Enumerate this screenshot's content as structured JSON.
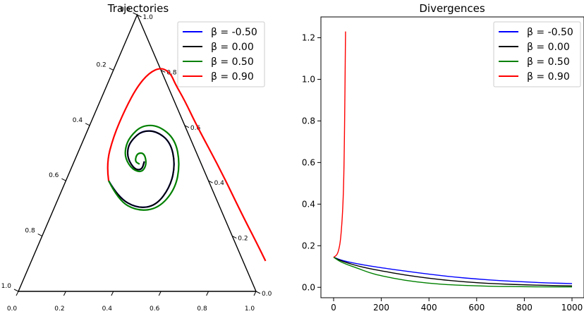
{
  "chart_data": [
    {
      "type": "line",
      "subtype": "ternary",
      "title": "Trajectories",
      "axis_ticks": [
        "0.0",
        "0.2",
        "0.4",
        "0.6",
        "0.8",
        "1.0"
      ],
      "legend": {
        "placement": "top-right"
      },
      "series": [
        {
          "name": "β = -0.50",
          "color": "#0000ff",
          "description": "inward spiral",
          "points": [
            [
              0.38,
              0.4
            ],
            [
              0.42,
              0.34
            ],
            [
              0.5,
              0.3
            ],
            [
              0.58,
              0.31
            ],
            [
              0.64,
              0.38
            ],
            [
              0.66,
              0.46
            ],
            [
              0.64,
              0.54
            ],
            [
              0.58,
              0.58
            ],
            [
              0.52,
              0.58
            ],
            [
              0.48,
              0.55
            ],
            [
              0.46,
              0.52
            ],
            [
              0.46,
              0.48
            ],
            [
              0.49,
              0.44
            ],
            [
              0.52,
              0.44
            ],
            [
              0.53,
              0.47
            ]
          ]
        },
        {
          "name": "β = 0.00",
          "color": "#000000",
          "points": [
            [
              0.38,
              0.4
            ],
            [
              0.42,
              0.34
            ],
            [
              0.5,
              0.3
            ],
            [
              0.58,
              0.31
            ],
            [
              0.64,
              0.38
            ],
            [
              0.66,
              0.46
            ],
            [
              0.64,
              0.54
            ],
            [
              0.58,
              0.58
            ],
            [
              0.52,
              0.58
            ],
            [
              0.48,
              0.55
            ],
            [
              0.46,
              0.52
            ],
            [
              0.46,
              0.48
            ],
            [
              0.49,
              0.44
            ],
            [
              0.52,
              0.44
            ],
            [
              0.53,
              0.47
            ]
          ]
        },
        {
          "name": "β = 0.50",
          "color": "#008000",
          "points": [
            [
              0.38,
              0.4
            ],
            [
              0.42,
              0.33
            ],
            [
              0.5,
              0.29
            ],
            [
              0.59,
              0.3
            ],
            [
              0.66,
              0.37
            ],
            [
              0.68,
              0.46
            ],
            [
              0.66,
              0.55
            ],
            [
              0.59,
              0.6
            ],
            [
              0.52,
              0.6
            ],
            [
              0.47,
              0.56
            ],
            [
              0.45,
              0.52
            ],
            [
              0.45,
              0.48
            ],
            [
              0.48,
              0.44
            ],
            [
              0.52,
              0.43
            ],
            [
              0.54,
              0.46
            ],
            [
              0.53,
              0.5
            ],
            [
              0.5,
              0.5
            ],
            [
              0.49,
              0.47
            ],
            [
              0.51,
              0.46
            ]
          ]
        },
        {
          "name": "β = 0.90",
          "color": "#ff0000",
          "points": [
            [
              0.38,
              0.4
            ],
            [
              0.37,
              0.46
            ],
            [
              0.4,
              0.56
            ],
            [
              0.45,
              0.66
            ],
            [
              0.5,
              0.74
            ],
            [
              0.55,
              0.79
            ],
            [
              0.6,
              0.81
            ],
            [
              0.64,
              0.79
            ],
            [
              0.66,
              0.75
            ],
            [
              0.7,
              0.69
            ],
            [
              0.75,
              0.6
            ],
            [
              0.85,
              0.44
            ],
            [
              0.94,
              0.28
            ],
            [
              1.0,
              0.18
            ],
            [
              1.04,
              0.11
            ]
          ]
        }
      ]
    },
    {
      "type": "line",
      "title": "Divergences",
      "xlim": [
        0,
        1000
      ],
      "ylim": [
        -0.05,
        1.3
      ],
      "xticks": [
        0,
        200,
        400,
        600,
        800,
        1000
      ],
      "yticks": [
        0.0,
        0.2,
        0.4,
        0.6,
        0.8,
        1.0,
        1.2
      ],
      "xtick_labels": [
        "0",
        "200",
        "400",
        "600",
        "800",
        "1000"
      ],
      "ytick_labels": [
        "0.0",
        "0.2",
        "0.4",
        "0.6",
        "0.8",
        "1.0",
        "1.2"
      ],
      "legend": {
        "placement": "top-right"
      },
      "series": [
        {
          "name": "β = -0.50",
          "color": "#0000ff",
          "x": [
            0,
            20,
            50,
            100,
            150,
            200,
            300,
            400,
            500,
            600,
            700,
            800,
            900,
            1000
          ],
          "y": [
            0.145,
            0.135,
            0.125,
            0.113,
            0.103,
            0.094,
            0.078,
            0.063,
            0.05,
            0.04,
            0.032,
            0.026,
            0.021,
            0.018
          ]
        },
        {
          "name": "β = 0.00",
          "color": "#000000",
          "x": [
            0,
            20,
            50,
            100,
            150,
            200,
            300,
            400,
            500,
            600,
            700,
            800,
            900,
            1000
          ],
          "y": [
            0.145,
            0.133,
            0.12,
            0.103,
            0.09,
            0.079,
            0.059,
            0.043,
            0.031,
            0.022,
            0.016,
            0.012,
            0.009,
            0.007
          ]
        },
        {
          "name": "β = 0.50",
          "color": "#008000",
          "x": [
            0,
            20,
            50,
            100,
            150,
            200,
            300,
            400,
            500,
            600,
            700,
            800,
            900,
            1000
          ],
          "y": [
            0.145,
            0.128,
            0.112,
            0.092,
            0.07,
            0.055,
            0.033,
            0.019,
            0.011,
            0.007,
            0.004,
            0.003,
            0.002,
            0.002
          ]
        },
        {
          "name": "β = 0.90",
          "color": "#ff0000",
          "x": [
            0,
            10,
            20,
            30,
            40,
            45,
            50
          ],
          "y": [
            0.145,
            0.15,
            0.17,
            0.23,
            0.4,
            0.65,
            1.23
          ]
        }
      ]
    }
  ]
}
